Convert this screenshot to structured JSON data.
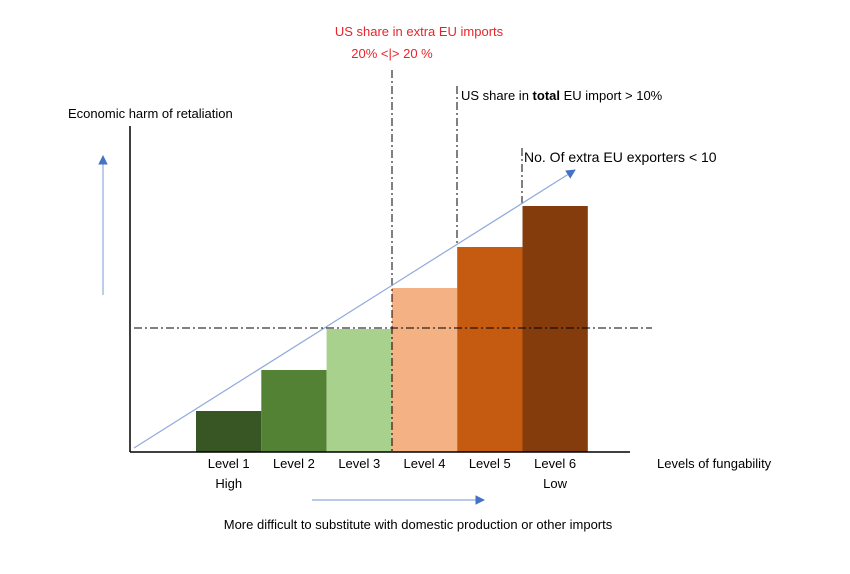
{
  "chart_data": {
    "type": "bar",
    "categories": [
      "Level 1",
      "Level 2",
      "Level 3",
      "Level 4",
      "Level 5",
      "Level 6"
    ],
    "values": [
      1,
      2,
      3,
      4,
      5,
      6
    ],
    "colors": [
      "#375623",
      "#548235",
      "#a9d18e",
      "#f4b183",
      "#c55a11",
      "#843c0c"
    ],
    "ylabel": "Economic harm of retaliation",
    "xlabel": "Levels of fungability",
    "tick_sublabels": [
      "High",
      "",
      "",
      "",
      "",
      "Low"
    ],
    "threshold_level": 3,
    "annotations": {
      "us_share_extra_line1": "US share in extra EU imports",
      "us_share_extra_line2": "20% <|> 20 %",
      "us_share_total_prefix": "US share in ",
      "us_share_total_bold": "total",
      "us_share_total_suffix": " EU import > 10%",
      "exporters": "No. Of extra EU exporters < 10"
    },
    "arrow_caption": "More difficult to substitute with domestic production or other imports",
    "accent_color": "#4472c4",
    "annotation_color": "#e8242a"
  }
}
